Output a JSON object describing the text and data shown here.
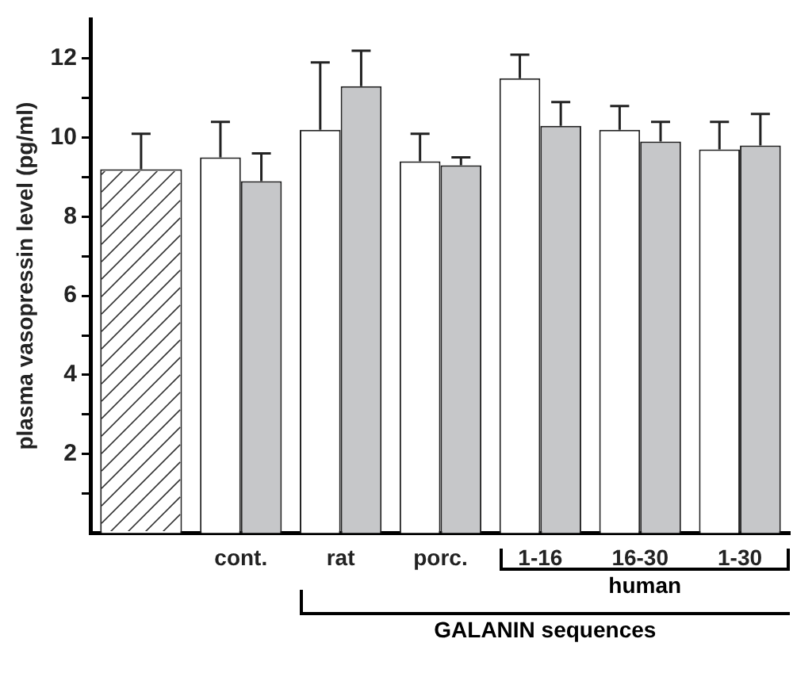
{
  "chart_data": {
    "type": "bar",
    "ylabel": "plasma vasopressin level (pg/ml)",
    "categories": [
      null,
      "cont.",
      "rat",
      "porc.",
      "1-16",
      "16-30",
      "1-30"
    ],
    "series": [
      {
        "color": "#ffffff",
        "values": [
          9.2,
          null,
          null,
          null,
          null,
          null,
          null
        ],
        "errors": [
          [
            9.2,
            10.1
          ],
          null,
          null,
          null,
          null,
          null,
          null
        ]
      },
      {
        "color": "#ffffff",
        "values": [
          null,
          9.5,
          10.2,
          9.4,
          11.5,
          10.2,
          9.7
        ],
        "errors": [
          null,
          [
            9.5,
            10.4
          ],
          [
            10.2,
            11.9
          ],
          [
            9.4,
            10.1
          ],
          [
            11.5,
            12.1
          ],
          [
            10.2,
            10.8
          ],
          [
            9.7,
            10.4
          ]
        ]
      },
      {
        "color": "#c6c7c9",
        "values": [
          null,
          8.9,
          11.3,
          9.3,
          10.3,
          9.9,
          9.8
        ],
        "errors": [
          null,
          [
            8.9,
            9.6
          ],
          [
            11.3,
            12.2
          ],
          [
            9.3,
            9.5
          ],
          [
            10.3,
            10.9
          ],
          [
            9.9,
            10.4
          ],
          [
            9.8,
            10.6
          ]
        ]
      }
    ],
    "ylim": [
      0,
      13
    ],
    "yticks": [
      {
        "value": 1,
        "label": null
      },
      2,
      {
        "value": 3,
        "label": null
      },
      4,
      {
        "value": 5,
        "label": null
      },
      6,
      {
        "value": 7,
        "label": null
      },
      8,
      {
        "value": 9,
        "label": null
      },
      10,
      {
        "value": 11,
        "label": null
      },
      12
    ],
    "annotations": [
      "human",
      "GALANIN sequences"
    ],
    "grid": false,
    "legend": false
  }
}
